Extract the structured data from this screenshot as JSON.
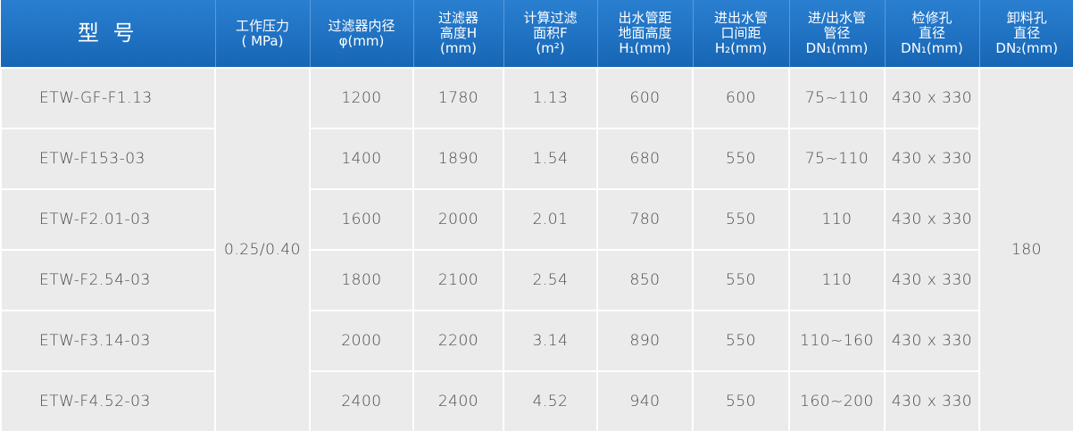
{
  "table": {
    "headers": [
      [
        "型 号"
      ],
      [
        "工作压力",
        "( MPa)"
      ],
      [
        "过滤器内径",
        "φ(mm)"
      ],
      [
        "过滤器",
        "高度H",
        "(mm)"
      ],
      [
        "计算过滤",
        "面积F",
        "(m²)"
      ],
      [
        "出水管距",
        "地面高度",
        "H₁(mm)"
      ],
      [
        "进出水管",
        "口间距",
        "H₂(mm)"
      ],
      [
        "进/出水管",
        "管径",
        "DN₁(mm)"
      ],
      [
        "检修孔",
        "直径",
        "DN₁(mm)"
      ],
      [
        "卸料孔",
        "直径",
        "DN₂(mm)"
      ]
    ],
    "pressure": "0.25/0.40",
    "discharge_diameter": "180",
    "rows": [
      [
        "ETW-GF-F1.13",
        "1200",
        "1780",
        "1.13",
        "600",
        "600",
        "75~110",
        "430 x 330"
      ],
      [
        "ETW-F153-03",
        "1400",
        "1890",
        "1.54",
        "680",
        "550",
        "75~110",
        "430 x 330"
      ],
      [
        "ETW-F2.01-03",
        "1600",
        "2000",
        "2.01",
        "780",
        "550",
        "110",
        "430 x 330"
      ],
      [
        "ETW-F2.54-03",
        "1800",
        "2100",
        "2.54",
        "850",
        "550",
        "110",
        "430 x 330"
      ],
      [
        "ETW-F3.14-03",
        "2000",
        "2200",
        "3.14",
        "890",
        "550",
        "110~160",
        "430 x 330"
      ],
      [
        "ETW-F4.52-03",
        "2400",
        "2400",
        "4.52",
        "940",
        "550",
        "160~200",
        "430 x 330"
      ]
    ]
  }
}
